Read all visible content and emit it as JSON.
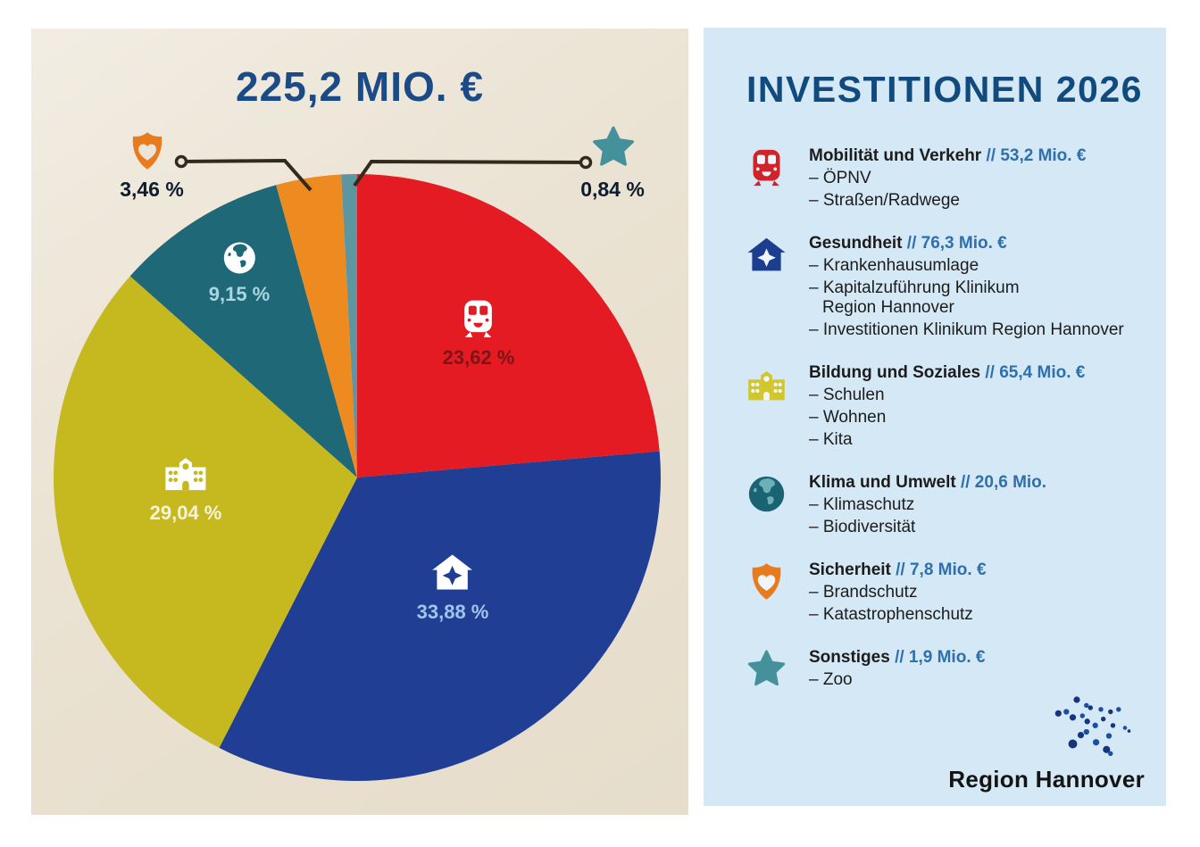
{
  "right_panel": {
    "title": "INVESTITIONEN 2026",
    "footer": {
      "logo_text": "Region Hannover"
    }
  },
  "chart_data": {
    "type": "pie",
    "title": "225,2 MIO. €",
    "total": "225,2 Mio. €",
    "direction": "clockwise",
    "start_angle_deg": 0,
    "legend_position": "right",
    "slices": [
      {
        "name": "Mobilität und Verkehr",
        "pct": 23.62,
        "pct_label": "23,62 %",
        "amount_label": "// 53,2 Mio. €",
        "color": "#e41b23",
        "legend_color": "#d2232a",
        "icon": "train",
        "details": [
          "ÖPNV",
          "Straßen/Radwege"
        ]
      },
      {
        "name": "Gesundheit",
        "pct": 33.88,
        "pct_label": "33,88 %",
        "amount_label": "// 76,3 Mio. €",
        "color": "#203f94",
        "legend_color": "#1c3e8f",
        "icon": "house-cross",
        "details": [
          "Krankenhausumlage",
          "Kapitalzuführung Klinikum\nRegion Hannover",
          "Investitionen Klinikum Region Hannover"
        ]
      },
      {
        "name": "Bildung und Soziales",
        "pct": 29.04,
        "pct_label": "29,04 %",
        "amount_label": "// 65,4 Mio. €",
        "color": "#c6b81f",
        "legend_color": "#d2c62b",
        "icon": "school",
        "details": [
          "Schulen",
          "Wohnen",
          "Kita"
        ]
      },
      {
        "name": "Klima und Umwelt",
        "pct": 9.15,
        "pct_label": "9,15 %",
        "amount_label": "// 20,6 Mio.",
        "color": "#1f6877",
        "legend_color": "#1a6372",
        "icon": "globe",
        "details": [
          "Klimaschutz",
          "Biodiversität"
        ]
      },
      {
        "name": "Sicherheit",
        "pct": 3.46,
        "pct_label": "3,46 %",
        "amount_label": "// 7,8 Mio. €",
        "color": "#ee8b20",
        "legend_color": "#e77b1d",
        "icon": "shield-heart",
        "details": [
          "Brandschutz",
          "Katastrophenschutz"
        ]
      },
      {
        "name": "Sonstiges",
        "pct": 0.84,
        "pct_label": "0,84 %",
        "amount_label": "// 1,9 Mio. €",
        "color": "#5d95a0",
        "legend_color": "#44909b",
        "icon": "star",
        "details": [
          "Zoo"
        ]
      }
    ]
  }
}
